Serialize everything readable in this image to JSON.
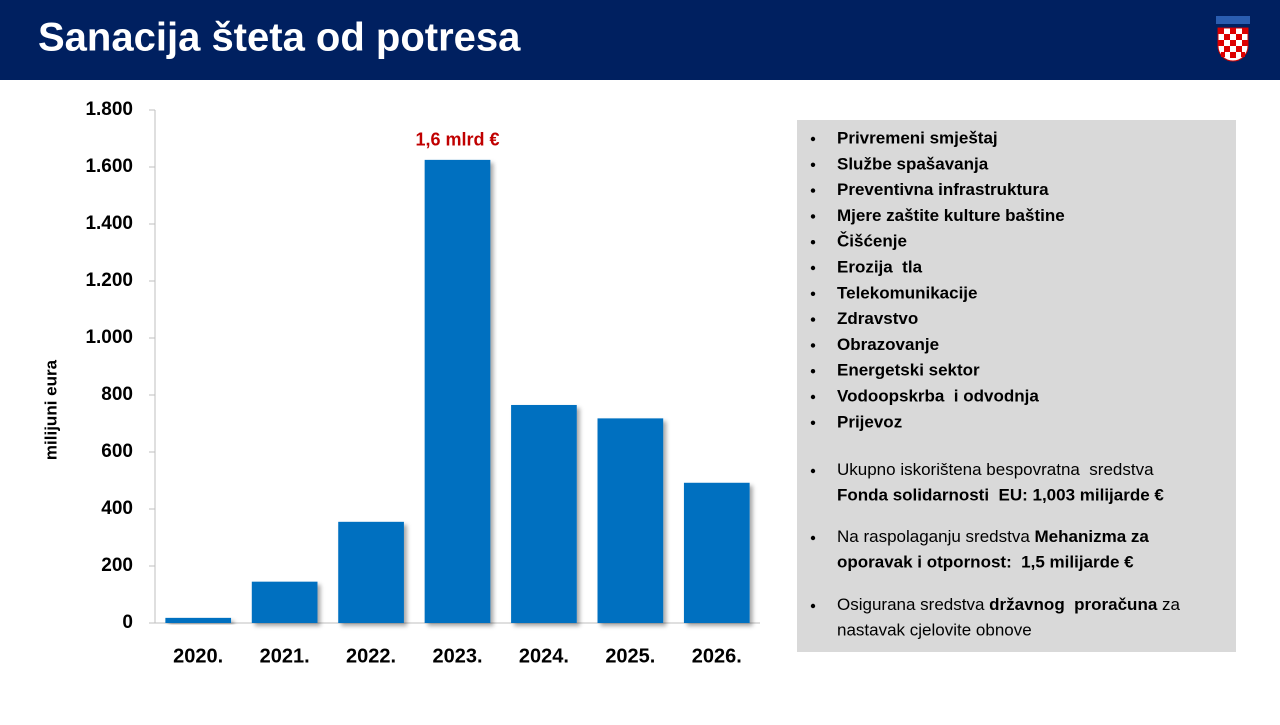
{
  "header": {
    "title": "Sanacija šteta od potresa"
  },
  "chart_data": {
    "type": "bar",
    "y_label": "milijuni eura",
    "categories": [
      "2020.",
      "2021.",
      "2022.",
      "2023.",
      "2024.",
      "2025.",
      "2026."
    ],
    "values": [
      18,
      145,
      355,
      1625,
      765,
      718,
      492
    ],
    "color": "#0070c0",
    "ylim": [
      0,
      1800
    ],
    "yticks": [
      0,
      200,
      400,
      600,
      800,
      {
        "value": 1000,
        "label": "1.000"
      },
      {
        "value": 1200,
        "label": "1.200"
      },
      {
        "value": 1400,
        "label": "1.400"
      },
      {
        "value": 1600,
        "label": "1.600"
      },
      {
        "value": 1800,
        "label": "1.800"
      }
    ],
    "annotations": [
      {
        "text": "1,6 mlrd €",
        "x": "2023.",
        "color": "#c00000"
      }
    ]
  },
  "panel": {
    "items": [
      "Privremeni smještaj",
      "Službe spašavanja",
      "Preventivna infrastruktura",
      "Mjere zaštite kulture baštine",
      "Čišćenje",
      "Erozija  tla",
      "Telekomunikacije",
      "Zdravstvo",
      "Obrazovanje",
      "Energetski sektor",
      "Vodoopskrba  i odvodnja",
      "Prijevoz"
    ],
    "notes": [
      {
        "lines": [
          [
            {
              "text": "Ukupno iskorištena bespovratna  sredstva"
            }
          ],
          [
            {
              "text": "Fonda solidarnosti  EU: 1,003 milijarde €",
              "bold": true
            }
          ]
        ]
      },
      {
        "lines": [
          [
            {
              "text": "Na raspolaganju sredstva "
            },
            {
              "text": "Mehanizma za",
              "bold": true
            }
          ],
          [
            {
              "text": "oporavak i otpornost:  1,5 milijarde €",
              "bold": true
            }
          ]
        ]
      },
      {
        "lines": [
          [
            {
              "text": "Osigurana sredstva "
            },
            {
              "text": "državnog  proračuna",
              "bold": true
            },
            {
              "text": " za"
            }
          ],
          [
            {
              "text": "nastavak cjelovite obnove"
            }
          ]
        ]
      }
    ]
  }
}
